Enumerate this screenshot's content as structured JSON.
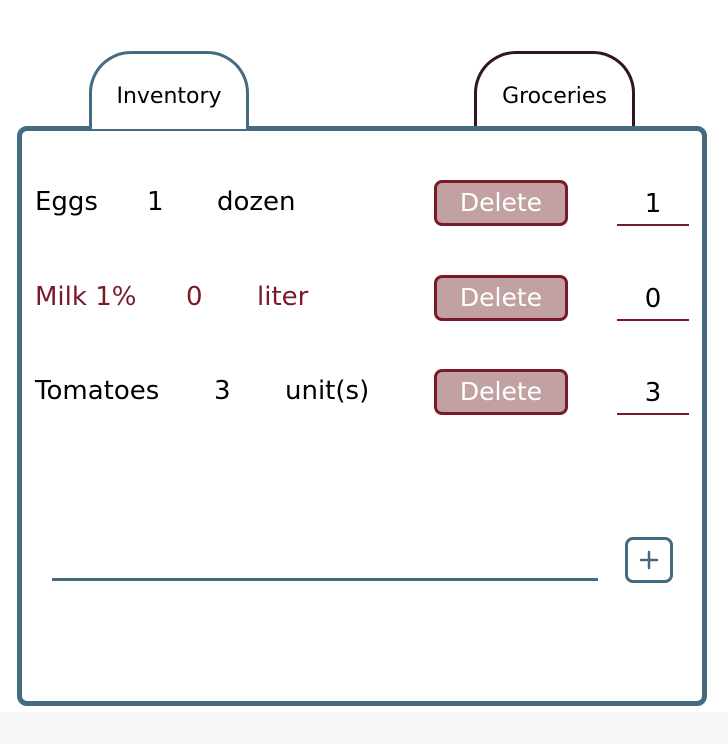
{
  "tabs": [
    {
      "label": "Inventory",
      "active": true
    },
    {
      "label": "Groceries",
      "active": false
    }
  ],
  "colors": {
    "primary": "#446b81",
    "accent": "#7a1a28",
    "delete_fill": "#c1a1a1",
    "groceries_tab_border": "#311520"
  },
  "inventory": {
    "delete_label": "Delete",
    "items": [
      {
        "name": "Eggs",
        "quantity": "1",
        "unit": "dozen",
        "input_value": "1"
      },
      {
        "name": "Milk 1%",
        "quantity": "0",
        "unit": "liter",
        "input_value": "0"
      },
      {
        "name": "Tomatoes",
        "quantity": "3",
        "unit": "unit(s)",
        "input_value": "3"
      }
    ]
  },
  "new_item": {
    "value": "",
    "add_icon": "plus-icon"
  }
}
